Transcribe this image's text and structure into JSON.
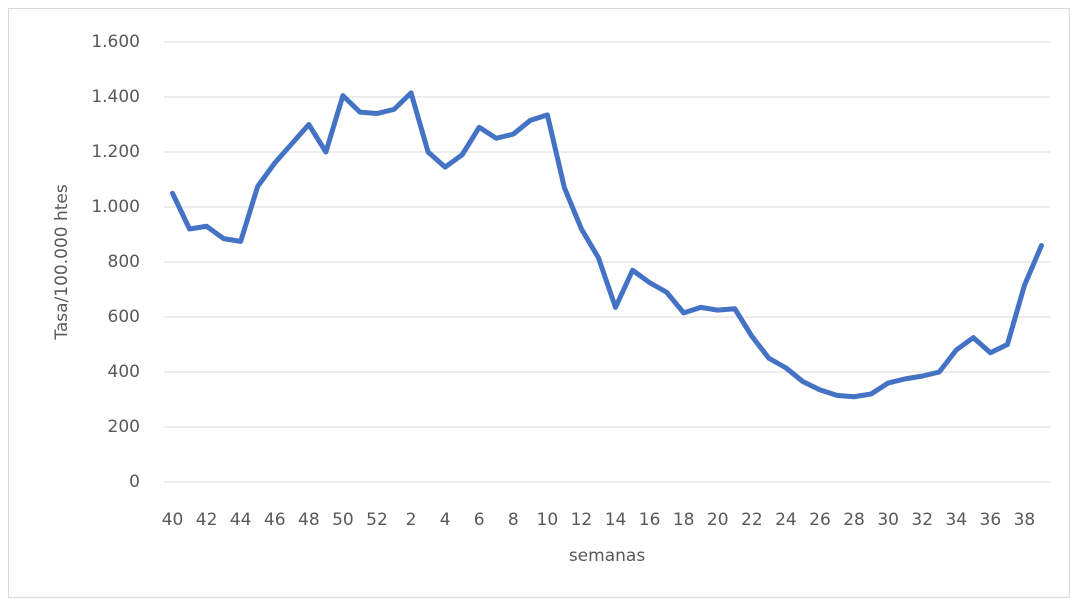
{
  "chart_data": {
    "type": "line",
    "y_label": "Tasa/100.000 htes",
    "x_label": "semanas",
    "categories": [
      "40",
      null,
      "42",
      null,
      "44",
      null,
      "46",
      null,
      "48",
      null,
      "50",
      null,
      "52",
      null,
      "2",
      null,
      "4",
      null,
      "6",
      null,
      "8",
      null,
      "10",
      null,
      "12",
      null,
      "14",
      null,
      "16",
      null,
      "18",
      null,
      "20",
      null,
      "22",
      null,
      "24",
      null,
      "26",
      null,
      "28",
      null,
      "30",
      null,
      "32",
      null,
      "34",
      null,
      "36",
      null,
      "38",
      null
    ],
    "values": [
      1050,
      920,
      930,
      885,
      875,
      1075,
      1160,
      1230,
      1300,
      1200,
      1405,
      1345,
      1340,
      1355,
      1415,
      1200,
      1145,
      1190,
      1290,
      1250,
      1265,
      1315,
      1335,
      1070,
      920,
      815,
      635,
      770,
      725,
      690,
      615,
      635,
      625,
      630,
      530,
      450,
      415,
      365,
      335,
      315,
      310,
      320,
      360,
      375,
      385,
      400,
      480,
      525,
      470,
      500,
      715,
      860
    ],
    "color": "#4472c4",
    "ylim": [
      0,
      1600
    ],
    "yticks": [
      0,
      200,
      400,
      600,
      800,
      {
        "value": 1000,
        "label": "1.000"
      },
      {
        "value": 1200,
        "label": "1.200"
      },
      {
        "value": 1400,
        "label": "1.400"
      },
      {
        "value": 1600,
        "label": "1.600"
      }
    ],
    "grid": true
  }
}
